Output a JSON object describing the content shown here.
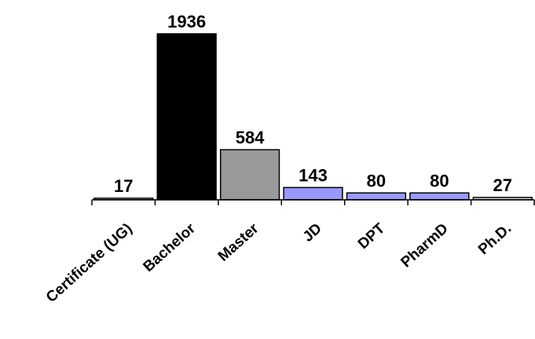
{
  "chart_data": {
    "type": "bar",
    "categories": [
      "Certificate (UG)",
      "Bachelor",
      "Master",
      "JD",
      "DPT",
      "PharmD",
      "Ph.D."
    ],
    "values": [
      17,
      1936,
      584,
      143,
      80,
      80,
      27
    ],
    "bar_colors": [
      "#d9d9d9",
      "#000000",
      "#999999",
      "#9999ff",
      "#9999ff",
      "#9999ff",
      "#d9d9d9"
    ],
    "data_labels": true,
    "grid": false,
    "legend": "none"
  }
}
